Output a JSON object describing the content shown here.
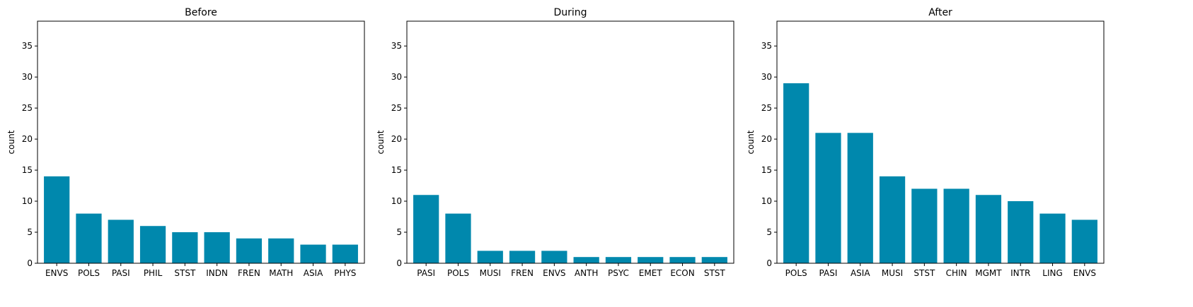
{
  "chart_data": [
    {
      "type": "bar",
      "title": "Before",
      "ylabel": "count",
      "xlabel": "",
      "ylim": [
        0,
        39
      ],
      "yticks": [
        0,
        5,
        10,
        15,
        20,
        25,
        30,
        35
      ],
      "categories": [
        "ENVS",
        "POLS",
        "PASI",
        "PHIL",
        "STST",
        "INDN",
        "FREN",
        "MATH",
        "ASIA",
        "PHYS"
      ],
      "values": [
        14,
        8,
        7,
        6,
        5,
        5,
        4,
        4,
        3,
        3
      ],
      "color": "#0088ad",
      "grid": false
    },
    {
      "type": "bar",
      "title": "During",
      "ylabel": "count",
      "xlabel": "",
      "ylim": [
        0,
        39
      ],
      "yticks": [
        0,
        5,
        10,
        15,
        20,
        25,
        30,
        35
      ],
      "categories": [
        "PASI",
        "POLS",
        "MUSI",
        "FREN",
        "ENVS",
        "ANTH",
        "PSYC",
        "EMET",
        "ECON",
        "STST"
      ],
      "values": [
        11,
        8,
        2,
        2,
        2,
        1,
        1,
        1,
        1,
        1
      ],
      "color": "#0088ad",
      "grid": false
    },
    {
      "type": "bar",
      "title": "After",
      "ylabel": "count",
      "xlabel": "",
      "ylim": [
        0,
        39
      ],
      "yticks": [
        0,
        5,
        10,
        15,
        20,
        25,
        30,
        35
      ],
      "categories": [
        "POLS",
        "PASI",
        "ASIA",
        "MUSI",
        "STST",
        "CHIN",
        "MGMT",
        "INTR",
        "LING",
        "ENVS"
      ],
      "values": [
        29,
        21,
        21,
        14,
        12,
        12,
        11,
        10,
        8,
        7
      ],
      "color": "#0088ad",
      "grid": false
    }
  ]
}
